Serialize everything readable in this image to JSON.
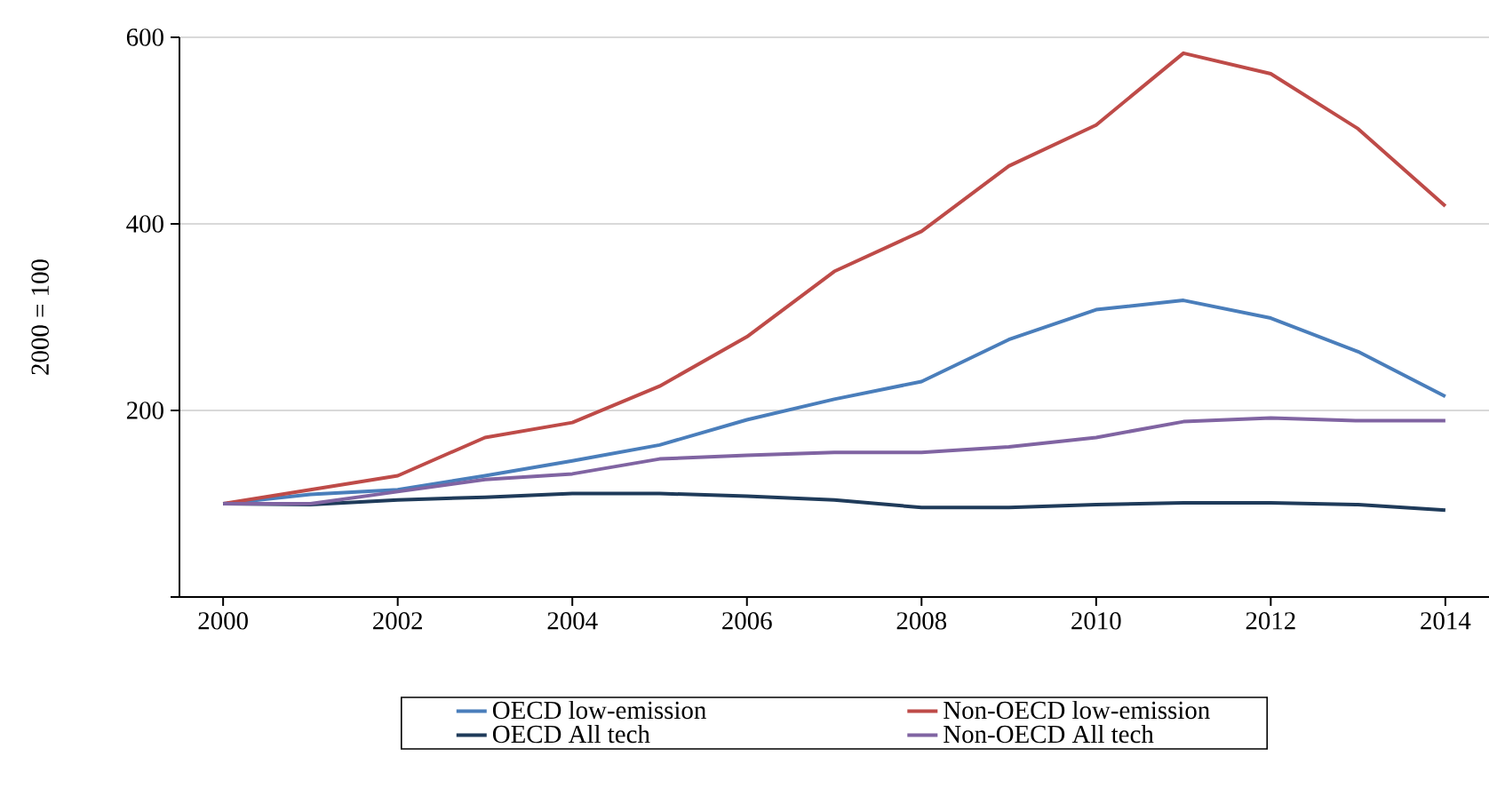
{
  "chart_data": {
    "type": "line",
    "ylabel": "2000 = 100",
    "x": [
      2000,
      2001,
      2002,
      2003,
      2004,
      2005,
      2006,
      2007,
      2008,
      2009,
      2010,
      2011,
      2012,
      2013,
      2014
    ],
    "series": [
      {
        "name": "OECD low-emission",
        "color": "#4a7ebb",
        "values": [
          100,
          110,
          115,
          130,
          146,
          163,
          190,
          212,
          231,
          276,
          308,
          318,
          299,
          263,
          215
        ]
      },
      {
        "name": "Non-OECD low-emission",
        "color": "#be4b48",
        "values": [
          100,
          115,
          130,
          171,
          187,
          226,
          279,
          349,
          392,
          462,
          506,
          583,
          561,
          502,
          419
        ]
      },
      {
        "name": "OECD All tech",
        "color": "#1f3b5a",
        "values": [
          100,
          99,
          104,
          107,
          111,
          111,
          108,
          104,
          96,
          96,
          99,
          101,
          101,
          99,
          93
        ]
      },
      {
        "name": "Non-OECD All tech",
        "color": "#8064a2",
        "values": [
          100,
          100,
          113,
          126,
          132,
          148,
          152,
          155,
          155,
          161,
          171,
          188,
          192,
          189,
          189
        ]
      }
    ],
    "xlim": [
      1999.5,
      2014.5
    ],
    "xticks": [
      2000,
      2002,
      2004,
      2006,
      2008,
      2010,
      2012,
      2014
    ],
    "ylim": [
      0,
      600
    ],
    "yticks": [
      {
        "value": 0,
        "label": null
      },
      200,
      400,
      600
    ],
    "grid": "y",
    "legend": "bottom",
    "line_style": "solid"
  }
}
